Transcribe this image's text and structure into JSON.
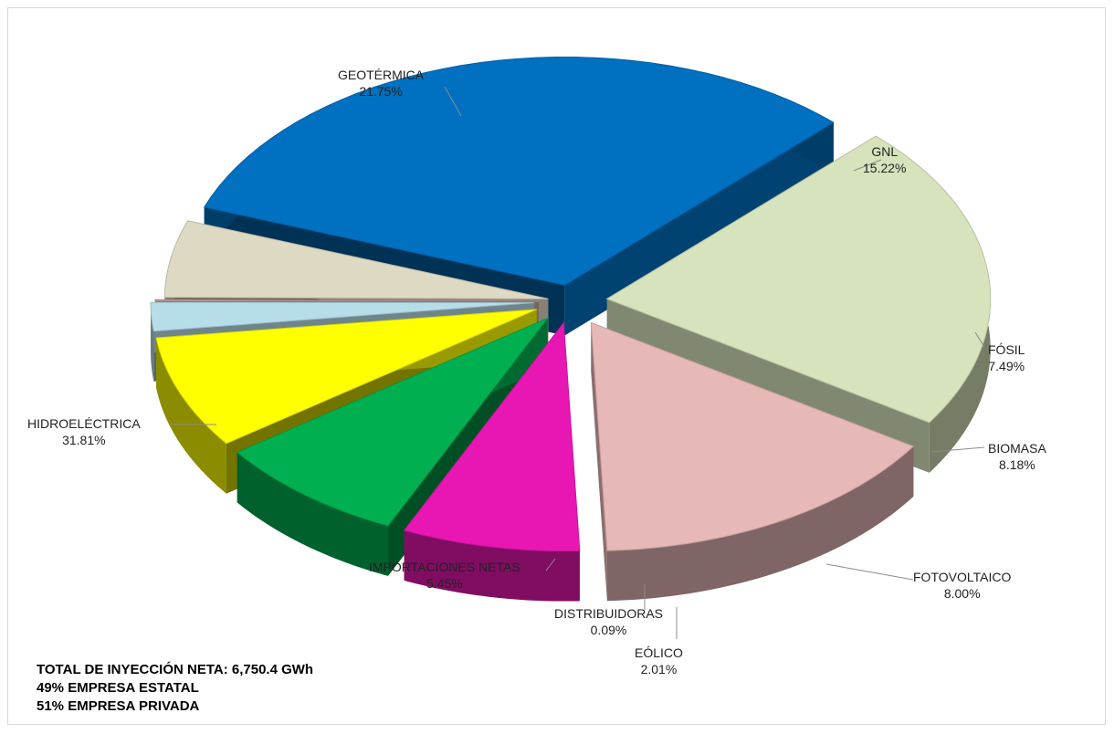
{
  "chart_data": {
    "type": "pie",
    "slices": [
      {
        "name": "HIDROELÉCTRICA",
        "value": 31.81,
        "label": "31.81%",
        "color": "#0070c0"
      },
      {
        "name": "GEOTÉRMICA",
        "value": 21.75,
        "label": "21.75%",
        "color": "#d6e3bc"
      },
      {
        "name": "GNL",
        "value": 15.22,
        "label": "15.22%",
        "color": "#e6b8b7"
      },
      {
        "name": "FÓSIL",
        "value": 7.49,
        "label": "7.49%",
        "color": "#e817b3"
      },
      {
        "name": "BIOMASA",
        "value": 8.18,
        "label": "8.18%",
        "color": "#00b050"
      },
      {
        "name": "FOTOVOLTAICO",
        "value": 8.0,
        "label": "8.00%",
        "color": "#ffff00"
      },
      {
        "name": "EÓLICO",
        "value": 2.01,
        "label": "2.01%",
        "color": "#b7dee8"
      },
      {
        "name": "DISTRIBUIDORAS",
        "value": 0.09,
        "label": "0.09%",
        "color": "#c9a6a6"
      },
      {
        "name": "IMPORTACIONES NETAS",
        "value": 5.45,
        "label": "5.45%",
        "color": "#ddd9c3"
      }
    ]
  },
  "notes": [
    "TOTAL DE INYECCIÓN NETA: 6,750.4 GWh",
    "49% EMPRESA ESTATAL",
    "51% EMPRESA PRIVADA"
  ]
}
